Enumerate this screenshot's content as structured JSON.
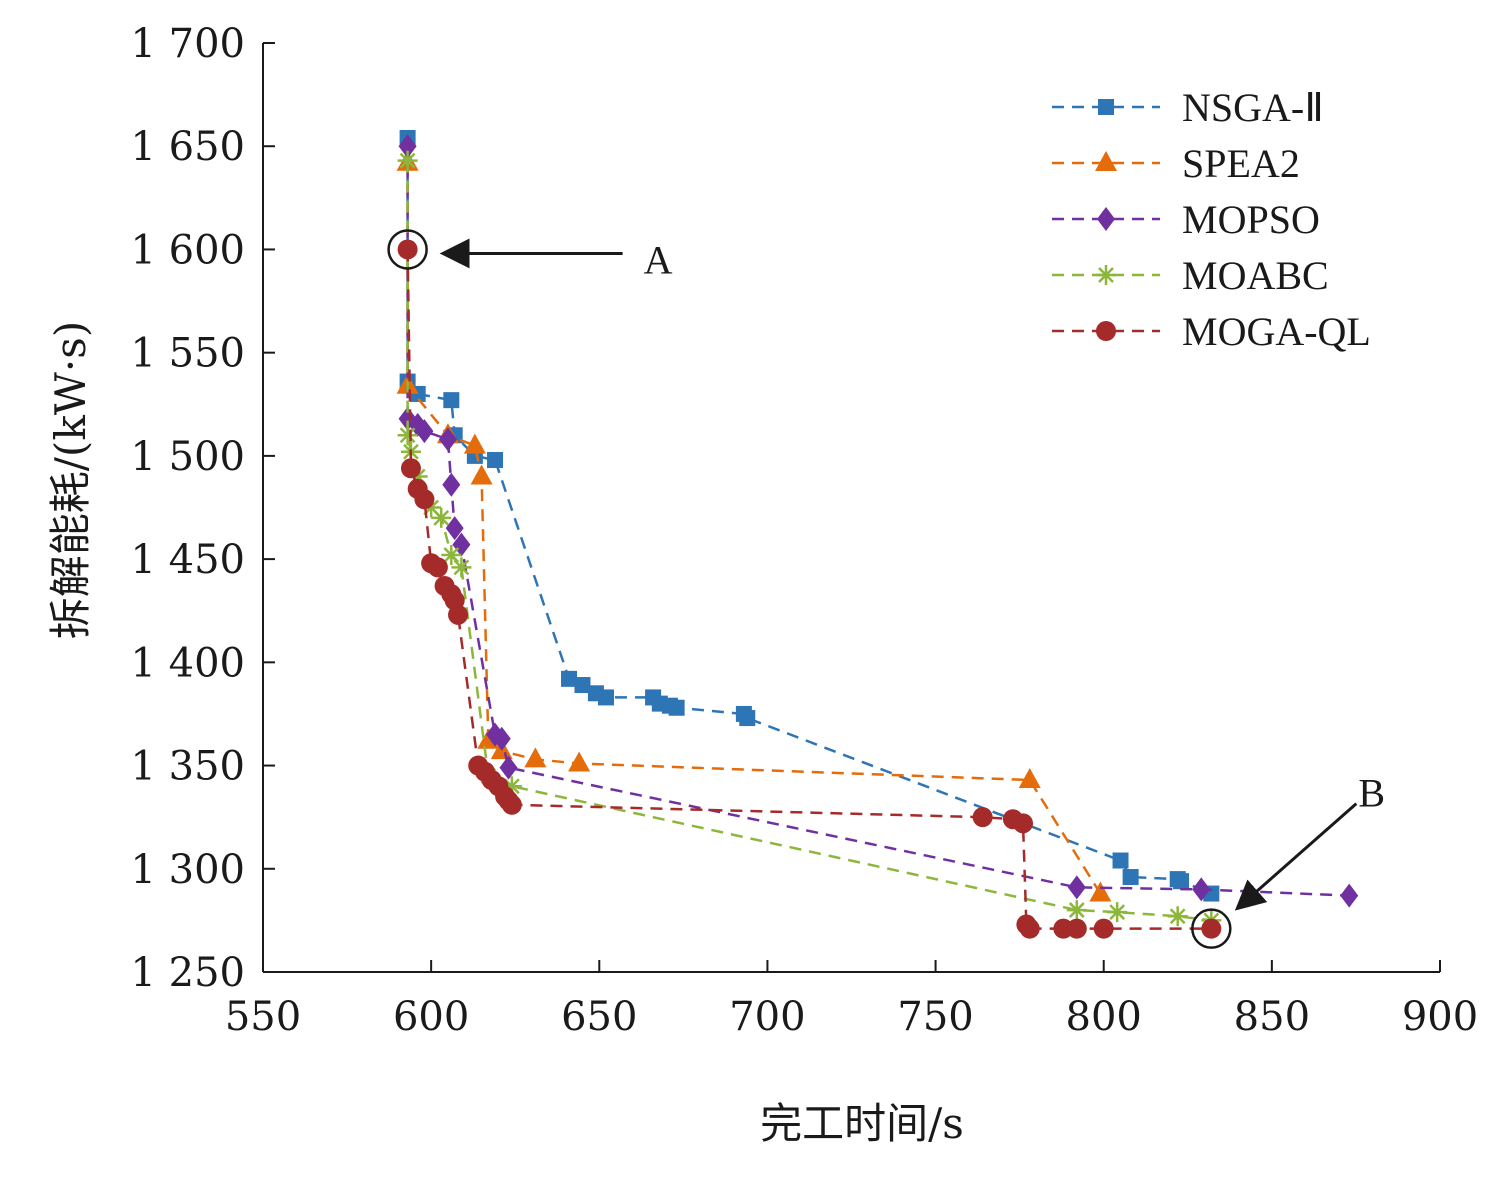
{
  "chart_data": {
    "type": "line",
    "title": "",
    "xlabel": "完工时间/s",
    "ylabel": "拆解能耗/(kW·s)",
    "xlim": [
      550,
      900
    ],
    "ylim": [
      1250,
      1700
    ],
    "x_ticks": [
      550,
      600,
      650,
      700,
      750,
      800,
      850,
      900
    ],
    "y_ticks": [
      1700,
      1650,
      1600,
      1550,
      1500,
      1450,
      1400,
      1350,
      1300,
      1250
    ],
    "x_tick_labels": [
      "550",
      "600",
      "650",
      "700",
      "750",
      "800",
      "850",
      "900"
    ],
    "y_tick_labels": [
      "1 700",
      "1 650",
      "1 600",
      "1 550",
      "1 500",
      "1 450",
      "1 400",
      "1 350",
      "1 300",
      "1 250"
    ],
    "grid": false,
    "legend_position": "top-right",
    "series": [
      {
        "name": "NSGA-Ⅱ",
        "color": "#2e75b6",
        "marker": "square",
        "x": [
          593,
          593,
          596,
          606,
          607,
          613,
          619,
          641,
          645,
          649,
          652,
          666,
          668,
          671,
          673,
          693,
          694,
          805,
          808,
          822,
          823,
          832
        ],
        "y": [
          1654,
          1536,
          1530,
          1527,
          1510,
          1500,
          1498,
          1392,
          1389,
          1385,
          1383,
          1383,
          1380,
          1379,
          1378,
          1375,
          1373,
          1304,
          1296,
          1295,
          1294,
          1288
        ]
      },
      {
        "name": "SPEA2",
        "color": "#e46c0a",
        "marker": "triangle",
        "x": [
          593,
          593,
          605,
          613,
          615,
          617,
          621,
          631,
          644,
          778,
          799
        ],
        "y": [
          1642,
          1534,
          1510,
          1505,
          1490,
          1362,
          1357,
          1353,
          1351,
          1343,
          1288
        ]
      },
      {
        "name": "MOPSO",
        "color": "#7030a0",
        "marker": "diamond",
        "x": [
          593,
          593,
          596,
          598,
          605,
          606,
          607,
          609,
          619,
          621,
          623,
          792,
          829,
          873
        ],
        "y": [
          1650,
          1518,
          1515,
          1512,
          1508,
          1486,
          1465,
          1457,
          1365,
          1363,
          1349,
          1291,
          1290,
          1287
        ]
      },
      {
        "name": "MOABC",
        "color": "#8db63c",
        "marker": "asterisk",
        "x": [
          593,
          593,
          594,
          596,
          600,
          603,
          606,
          609,
          617,
          624,
          792,
          804,
          822,
          832
        ],
        "y": [
          1643,
          1510,
          1502,
          1490,
          1475,
          1470,
          1452,
          1446,
          1345,
          1340,
          1280,
          1279,
          1277,
          1275
        ]
      },
      {
        "name": "MOGA-QL",
        "color": "#a52a2a",
        "marker": "circle",
        "x": [
          593,
          594,
          596,
          598,
          600,
          602,
          604,
          606,
          607,
          608,
          614,
          616,
          618,
          620,
          622,
          623,
          624,
          764,
          773,
          776,
          777,
          778,
          788,
          792,
          800,
          832
        ],
        "y": [
          1600,
          1494,
          1484,
          1479,
          1448,
          1446,
          1437,
          1433,
          1430,
          1423,
          1350,
          1347,
          1343,
          1340,
          1335,
          1333,
          1331,
          1325,
          1324,
          1322,
          1273,
          1271,
          1271,
          1271,
          1271,
          1271
        ]
      }
    ],
    "annotations": [
      {
        "label": "A",
        "x": 593,
        "y": 1600
      },
      {
        "label": "B",
        "x": 832,
        "y": 1271
      }
    ]
  }
}
